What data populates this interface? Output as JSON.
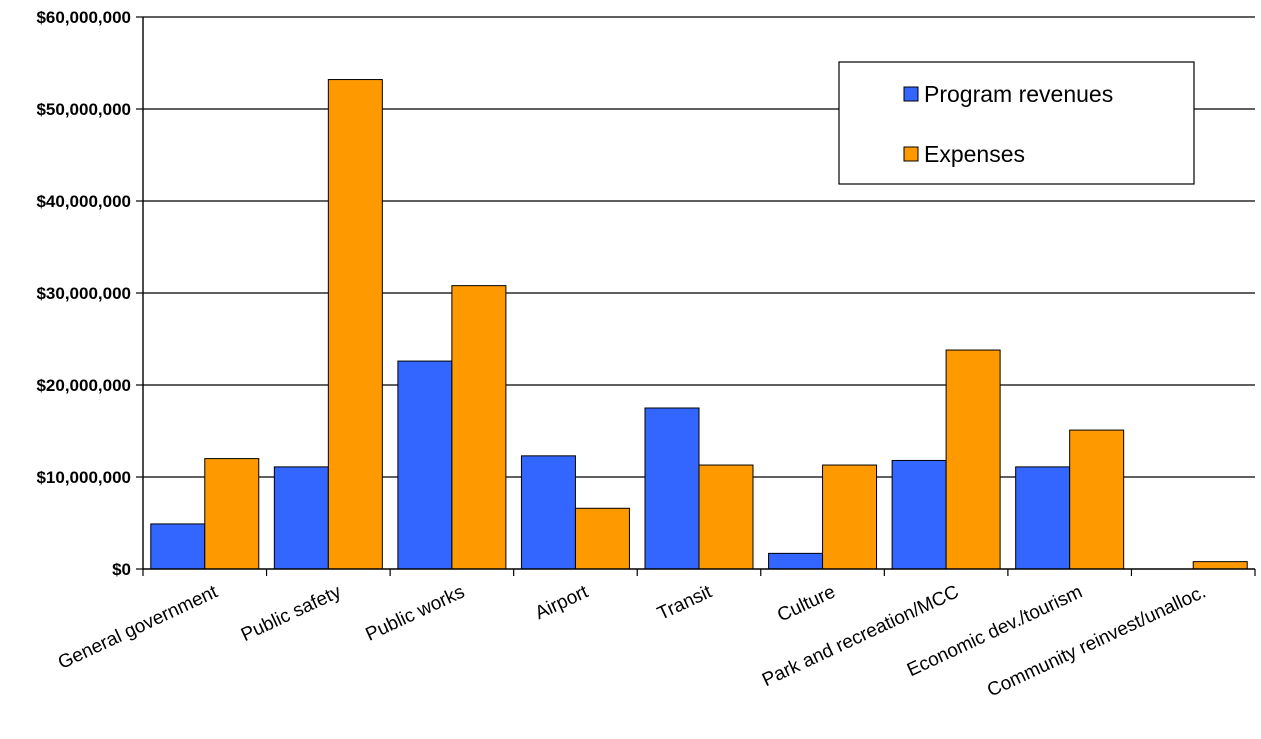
{
  "chart_data": {
    "type": "bar",
    "title": "",
    "xlabel": "",
    "ylabel": "",
    "ylim": [
      0,
      60000000
    ],
    "y_tick_values": [
      0,
      10000000,
      20000000,
      30000000,
      40000000,
      50000000,
      60000000
    ],
    "y_tick_labels": [
      "$0",
      "$10,000,000",
      "$20,000,000",
      "$30,000,000",
      "$40,000,000",
      "$50,000,000",
      "$60,000,000"
    ],
    "grid": true,
    "legend_position": "top-right",
    "categories": [
      "General government",
      "Public safety",
      "Public works",
      "Airport",
      "Transit",
      "Culture",
      "Park and recreation/MCC",
      "Economic dev./tourism",
      "Community reinvest/unalloc."
    ],
    "series": [
      {
        "name": "Program revenues",
        "color": "#3366FF",
        "values": [
          4900000,
          11100000,
          22600000,
          12300000,
          17500000,
          1700000,
          11800000,
          11100000,
          0
        ]
      },
      {
        "name": "Expenses",
        "color": "#FF9900",
        "values": [
          12000000,
          53200000,
          30800000,
          6600000,
          11300000,
          11300000,
          23800000,
          15100000,
          800000
        ]
      }
    ]
  }
}
